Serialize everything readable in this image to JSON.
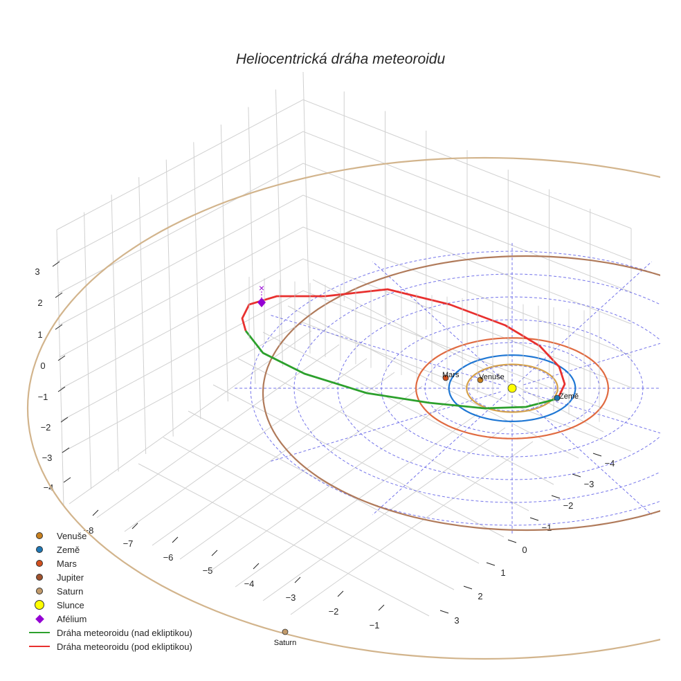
{
  "title": "Heliocentrická dráha meteoroidu",
  "legend": [
    {
      "label": "Venuše",
      "type": "dot",
      "color": "#c8801e"
    },
    {
      "label": "Země",
      "type": "dot",
      "color": "#1f77b4"
    },
    {
      "label": "Mars",
      "type": "dot",
      "color": "#d2501e"
    },
    {
      "label": "Jupiter",
      "type": "dot",
      "color": "#a0522d"
    },
    {
      "label": "Saturn",
      "type": "dot",
      "color": "#c19a6b"
    },
    {
      "label": "Slunce",
      "type": "bigdot",
      "color": "#ffff00"
    },
    {
      "label": "Afélium",
      "type": "diamond",
      "color": "#9400d3"
    },
    {
      "label": "Dráha meteoroidu (nad ekliptikou)",
      "type": "line",
      "color": "#2ca02c"
    },
    {
      "label": "Dráha meteoroidu (pod ekliptikou)",
      "type": "line",
      "color": "#e8302e"
    }
  ],
  "planet_labels": {
    "venus": "Venuše",
    "earth": "Země",
    "mars": "Mars",
    "saturn": "Saturn"
  },
  "chart_data": {
    "type": "line3d",
    "title": "Heliocentrická dráha meteoroidu",
    "xlabel": "",
    "ylabel": "",
    "zlabel": "",
    "x_ticks": [
      "−8",
      "−7",
      "−6",
      "−5",
      "−4",
      "−3",
      "−2",
      "−1"
    ],
    "y_ticks": [
      "−4",
      "−3",
      "−2",
      "−1",
      "0",
      "1",
      "2",
      "3"
    ],
    "z_ticks": [
      "3",
      "2",
      "1",
      "0",
      "−1",
      "−2",
      "−3",
      "−4"
    ],
    "xlim": [
      -8.5,
      -0.5
    ],
    "ylim": [
      -4.5,
      3.5
    ],
    "zlim": [
      -4.5,
      3.5
    ],
    "grid": true,
    "planet_orbits_au": [
      {
        "name": "Venuše",
        "a": 0.72,
        "color": "#d4a04a"
      },
      {
        "name": "Země",
        "a": 1.0,
        "color": "#1f77d4"
      },
      {
        "name": "Mars",
        "a": 1.52,
        "color": "#e06a40"
      },
      {
        "name": "Jupiter",
        "a": 5.2,
        "color": "#b07a5a"
      },
      {
        "name": "Saturn",
        "a": 9.54,
        "color": "#d2b48c"
      }
    ],
    "ecliptic_reference_circles_au": [
      1,
      2,
      3,
      4,
      5,
      6
    ],
    "meteoroid_orbit": {
      "perihelion_au": 0.98,
      "aphelion_au": 4.6,
      "aphelion_marker": "Afélium",
      "segments": [
        "nad ekliptikou",
        "pod ekliptikou"
      ]
    },
    "sun": "Slunce"
  }
}
